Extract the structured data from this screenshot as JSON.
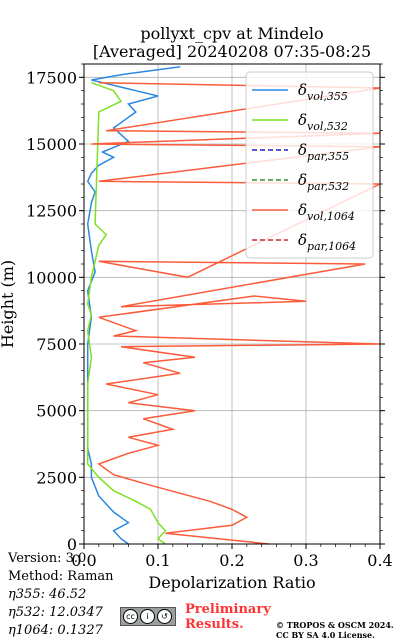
{
  "chart_data": {
    "type": "line",
    "title": "pollyxt_cpv at Mindelo",
    "subtitle": "[Averaged] 20240208 07:35-08:25",
    "xlabel": "Depolarization Ratio",
    "ylabel": "Height (m)",
    "xlim": [
      0,
      0.4
    ],
    "ylim": [
      0,
      18000
    ],
    "xticks": [
      "0.0",
      "0.1",
      "0.2",
      "0.3",
      "0.4"
    ],
    "yticks": [
      "0",
      "2500",
      "5000",
      "7500",
      "10000",
      "12500",
      "15000",
      "17500"
    ],
    "grid": true,
    "legend_position": "top-right",
    "series": [
      {
        "name": "δvol,355",
        "base": "δ",
        "sub": "vol,355",
        "color": "#2b88e0",
        "style": "solid",
        "points": [
          [
            0.06,
            0
          ],
          [
            0.05,
            200
          ],
          [
            0.04,
            500
          ],
          [
            0.06,
            800
          ],
          [
            0.04,
            1200
          ],
          [
            0.02,
            1800
          ],
          [
            0.01,
            2500
          ],
          [
            0.01,
            3000
          ],
          [
            0.005,
            3600
          ],
          [
            0.005,
            4500
          ],
          [
            0.005,
            5500
          ],
          [
            0.005,
            6500
          ],
          [
            0.005,
            7500
          ],
          [
            0.01,
            8500
          ],
          [
            0.005,
            9500
          ],
          [
            0.015,
            10200
          ],
          [
            0.01,
            11000
          ],
          [
            0.005,
            12000
          ],
          [
            0.01,
            12800
          ],
          [
            0.015,
            13200
          ],
          [
            0.005,
            13600
          ],
          [
            0.01,
            13900
          ],
          [
            0.02,
            14200
          ],
          [
            0.04,
            14500
          ],
          [
            0.025,
            14700
          ],
          [
            0.06,
            15100
          ],
          [
            0.04,
            15600
          ],
          [
            0.07,
            16200
          ],
          [
            0.06,
            16500
          ],
          [
            0.1,
            16800
          ],
          [
            0.07,
            17000
          ],
          [
            0.04,
            17200
          ],
          [
            0.01,
            17400
          ],
          [
            0.05,
            17600
          ],
          [
            0.13,
            17900
          ]
        ]
      },
      {
        "name": "δvol,532",
        "base": "δ",
        "sub": "vol,532",
        "color": "#7de024",
        "style": "solid",
        "points": [
          [
            0.11,
            0
          ],
          [
            0.1,
            200
          ],
          [
            0.11,
            500
          ],
          [
            0.1,
            800
          ],
          [
            0.09,
            1300
          ],
          [
            0.07,
            1600
          ],
          [
            0.04,
            2000
          ],
          [
            0.02,
            2500
          ],
          [
            0.005,
            3000
          ],
          [
            0.005,
            3500
          ],
          [
            0.005,
            4500
          ],
          [
            0.005,
            6000
          ],
          [
            0.01,
            7000
          ],
          [
            0.005,
            8000
          ],
          [
            0.01,
            8600
          ],
          [
            0.005,
            9000
          ],
          [
            0.01,
            10000
          ],
          [
            0.02,
            11200
          ],
          [
            0.03,
            11600
          ],
          [
            0.015,
            12000
          ],
          [
            0.02,
            16200
          ],
          [
            0.05,
            16600
          ],
          [
            0.04,
            17000
          ],
          [
            0.01,
            17300
          ]
        ]
      },
      {
        "name": "δpar,355",
        "base": "δ",
        "sub": "par,355",
        "color": "#2a1fc4",
        "style": "dashed",
        "points": []
      },
      {
        "name": "δpar,532",
        "base": "δ",
        "sub": "par,532",
        "color": "#3a8a3a",
        "style": "dashed",
        "points": []
      },
      {
        "name": "δvol,1064",
        "base": "δ",
        "sub": "vol,1064",
        "color": "#fb5b3a",
        "style": "solid",
        "points": [
          [
            0.25,
            0
          ],
          [
            0.11,
            400
          ],
          [
            0.2,
            700
          ],
          [
            0.22,
            1000
          ],
          [
            0.2,
            1300
          ],
          [
            0.17,
            1600
          ],
          [
            0.13,
            1900
          ],
          [
            0.09,
            2200
          ],
          [
            0.04,
            2600
          ],
          [
            0.02,
            3000
          ],
          [
            0.06,
            3400
          ],
          [
            0.1,
            3700
          ],
          [
            0.06,
            4000
          ],
          [
            0.12,
            4300
          ],
          [
            0.08,
            4700
          ],
          [
            0.15,
            5000
          ],
          [
            0.06,
            5300
          ],
          [
            0.1,
            5600
          ],
          [
            0.03,
            6000
          ],
          [
            0.13,
            6400
          ],
          [
            0.08,
            6800
          ],
          [
            0.15,
            7000
          ],
          [
            0.05,
            7400
          ],
          [
            0.4,
            7500
          ],
          [
            0.04,
            7800
          ],
          [
            0.07,
            8000
          ],
          [
            0.02,
            8500
          ],
          [
            0.23,
            9300
          ],
          [
            0.3,
            9100
          ],
          [
            0.05,
            8900
          ],
          [
            0.38,
            10500
          ],
          [
            0.02,
            10600
          ],
          [
            0.14,
            10000
          ],
          [
            0.4,
            13500
          ],
          [
            0.02,
            13600
          ],
          [
            0.4,
            14900
          ],
          [
            0.01,
            15000
          ],
          [
            0.4,
            15400
          ],
          [
            0.03,
            15500
          ],
          [
            0.4,
            17100
          ],
          [
            0.02,
            17300
          ]
        ]
      },
      {
        "name": "δpar,1064",
        "base": "δ",
        "sub": "par,1064",
        "color": "#d42a2a",
        "style": "dashed",
        "points": []
      }
    ],
    "annotations": []
  },
  "meta": {
    "version": "Version: 3.0",
    "method": "Method: Raman",
    "eta355": "η355:  46.52",
    "eta532": "η532: 12.0347",
    "eta1064": "η1064: 0.1327"
  },
  "footer": {
    "cc_badge": "cc by sa",
    "preliminary_line1": "Preliminary",
    "preliminary_line2": "Results.",
    "copyright_line1": "© TROPOS & OSCM 2024.",
    "copyright_line2": "CC BY SA 4.0 License."
  }
}
